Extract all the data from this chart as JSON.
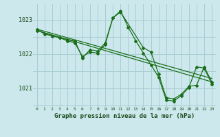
{
  "bg_color": "#cce8ec",
  "grid_color": "#a8cdd4",
  "line_color": "#1a6e1a",
  "title": "Graphe pression niveau de la mer (hPa)",
  "ylabel_ticks": [
    1021,
    1022,
    1023
  ],
  "xlim": [
    -0.5,
    23.5
  ],
  "ylim": [
    1020.45,
    1023.45
  ],
  "x_ticks": [
    0,
    1,
    2,
    3,
    4,
    5,
    6,
    7,
    8,
    9,
    10,
    11,
    12,
    13,
    14,
    15,
    16,
    17,
    18,
    19,
    20,
    21,
    22,
    23
  ],
  "trend1_x": [
    0,
    23
  ],
  "trend1_y": [
    1022.72,
    1021.28
  ],
  "trend2_x": [
    0,
    23
  ],
  "trend2_y": [
    1022.68,
    1021.18
  ],
  "series3_x": [
    0,
    1,
    2,
    3,
    4,
    5,
    6,
    7,
    8,
    9,
    10,
    11,
    14,
    15,
    16,
    17,
    18,
    19,
    20,
    21,
    22,
    23
  ],
  "series3_y": [
    1022.72,
    1022.58,
    1022.52,
    1022.47,
    1022.42,
    1022.38,
    1021.88,
    1022.12,
    1022.08,
    1022.32,
    1023.05,
    1023.22,
    1022.18,
    1022.05,
    1021.42,
    1020.72,
    1020.68,
    1020.82,
    1021.05,
    1021.08,
    1021.62,
    1021.18
  ],
  "series4_x": [
    0,
    3,
    4,
    5,
    6,
    7,
    8,
    9,
    10,
    11,
    12,
    13,
    14,
    15,
    16,
    17,
    18,
    19,
    20,
    21,
    22,
    23
  ],
  "series4_y": [
    1022.68,
    1022.47,
    1022.38,
    1022.32,
    1021.92,
    1022.05,
    1022.02,
    1022.28,
    1023.05,
    1023.25,
    1022.78,
    1022.38,
    1022.02,
    1021.68,
    1021.32,
    1020.65,
    1020.62,
    1020.78,
    1021.02,
    1021.62,
    1021.58,
    1021.12
  ],
  "tick_fontsize": 6,
  "xlabel_fontsize": 6.5
}
